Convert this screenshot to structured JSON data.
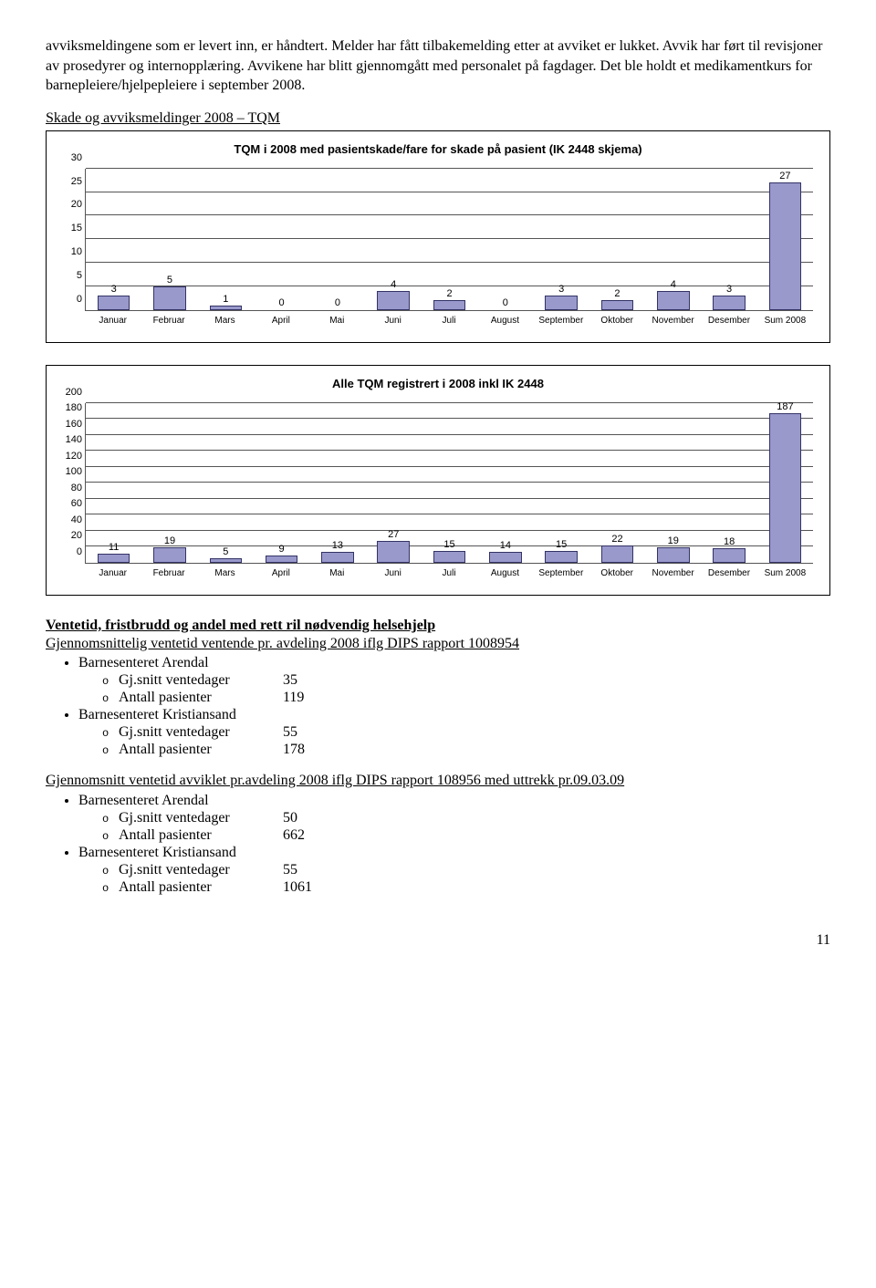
{
  "intro_paragraph": "avviksmeldingene som er levert inn, er håndtert. Melder har fått tilbakemelding etter at avviket er lukket. Avvik har ført til revisjoner av prosedyrer og internopplæring. Avvikene har blitt gjennomgått med personalet på fagdager. Det ble holdt et medikamentkurs for barnepleiere/hjelpepleiere i september 2008.",
  "section_heading": "Skade og avviksmeldinger 2008 – TQM",
  "chart1": {
    "title": "TQM i 2008 med pasientskade/fare for skade på pasient (IK 2448 skjema)",
    "categories": [
      "Januar",
      "Februar",
      "Mars",
      "April",
      "Mai",
      "Juni",
      "Juli",
      "August",
      "September",
      "Oktober",
      "November",
      "Desember",
      "Sum 2008"
    ],
    "values": [
      3,
      5,
      1,
      0,
      0,
      4,
      2,
      0,
      3,
      2,
      4,
      3,
      27
    ],
    "ymax": 30,
    "ytick_step": 5,
    "bar_color": "#9999cc",
    "bar_border": "#333366",
    "grid_color": "#555555"
  },
  "chart2": {
    "title": "Alle TQM registrert i 2008 inkl IK 2448",
    "categories": [
      "Januar",
      "Februar",
      "Mars",
      "April",
      "Mai",
      "Juni",
      "Juli",
      "August",
      "September",
      "Oktober",
      "November",
      "Desember",
      "Sum 2008"
    ],
    "values": [
      11,
      19,
      5,
      9,
      13,
      27,
      15,
      14,
      15,
      22,
      19,
      18,
      187
    ],
    "ymax": 200,
    "ytick_step": 20,
    "bar_color": "#9999cc",
    "bar_border": "#333366",
    "grid_color": "#555555"
  },
  "ventetid": {
    "heading": "Ventetid, fristbrudd og andel med rett ril nødvendig helsehjelp",
    "sub1": "Gjennomsnittelig ventetid ventende pr. avdeling 2008 iflg DIPS rapport 1008954",
    "groups1": [
      {
        "name": "Barnesenteret Arendal",
        "rows": [
          {
            "label": "Gj.snitt ventedager",
            "value": "35"
          },
          {
            "label": "Antall pasienter",
            "value": "119"
          }
        ]
      },
      {
        "name": "Barnesenteret Kristiansand",
        "rows": [
          {
            "label": "Gj.snitt ventedager",
            "value": "55"
          },
          {
            "label": "Antall pasienter",
            "value": "178"
          }
        ]
      }
    ],
    "sub2": "Gjennomsnitt ventetid avviklet pr.avdeling 2008 iflg DIPS rapport 108956 med uttrekk pr.09.03.09",
    "groups2": [
      {
        "name": "Barnesenteret Arendal",
        "rows": [
          {
            "label": "Gj.snitt ventedager",
            "value": "50"
          },
          {
            "label": "Antall pasienter",
            "value": "662"
          }
        ]
      },
      {
        "name": "Barnesenteret Kristiansand",
        "rows": [
          {
            "label": "Gj.snitt ventedager",
            "value": "55"
          },
          {
            "label": "Antall pasienter",
            "value": "1061"
          }
        ]
      }
    ]
  },
  "page_number": "11"
}
